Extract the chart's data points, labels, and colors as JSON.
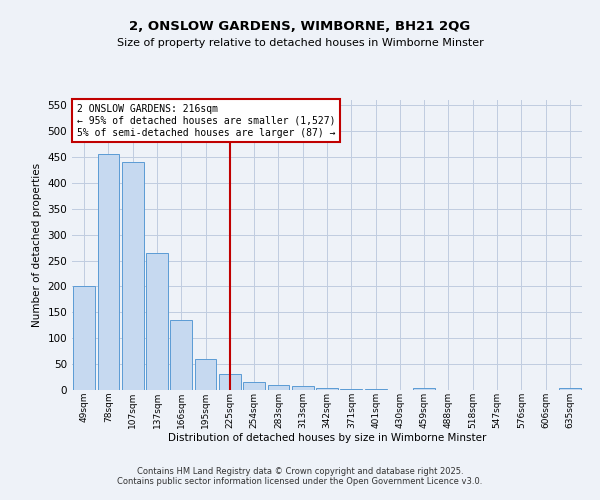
{
  "title": "2, ONSLOW GARDENS, WIMBORNE, BH21 2QG",
  "subtitle": "Size of property relative to detached houses in Wimborne Minster",
  "xlabel": "Distribution of detached houses by size in Wimborne Minster",
  "ylabel": "Number of detached properties",
  "bar_values": [
    200,
    455,
    440,
    265,
    135,
    60,
    30,
    15,
    10,
    7,
    4,
    2,
    1,
    0,
    3,
    0,
    0,
    0,
    0,
    0,
    3
  ],
  "bin_labels": [
    "49sqm",
    "78sqm",
    "107sqm",
    "137sqm",
    "166sqm",
    "195sqm",
    "225sqm",
    "254sqm",
    "283sqm",
    "313sqm",
    "342sqm",
    "371sqm",
    "401sqm",
    "430sqm",
    "459sqm",
    "488sqm",
    "518sqm",
    "547sqm",
    "576sqm",
    "606sqm",
    "635sqm"
  ],
  "bar_color": "#c6d9f0",
  "bar_edge_color": "#5b9bd5",
  "vline_x_index": 6,
  "vline_color": "#c00000",
  "annotation_text": "2 ONSLOW GARDENS: 216sqm\n← 95% of detached houses are smaller (1,527)\n5% of semi-detached houses are larger (87) →",
  "annotation_box_color": "#c00000",
  "ylim": [
    0,
    560
  ],
  "yticks": [
    0,
    50,
    100,
    150,
    200,
    250,
    300,
    350,
    400,
    450,
    500,
    550
  ],
  "grid_color": "#c0cce0",
  "bg_color": "#eef2f8",
  "fig_bg_color": "#eef2f8",
  "footer_line1": "Contains HM Land Registry data © Crown copyright and database right 2025.",
  "footer_line2": "Contains public sector information licensed under the Open Government Licence v3.0."
}
